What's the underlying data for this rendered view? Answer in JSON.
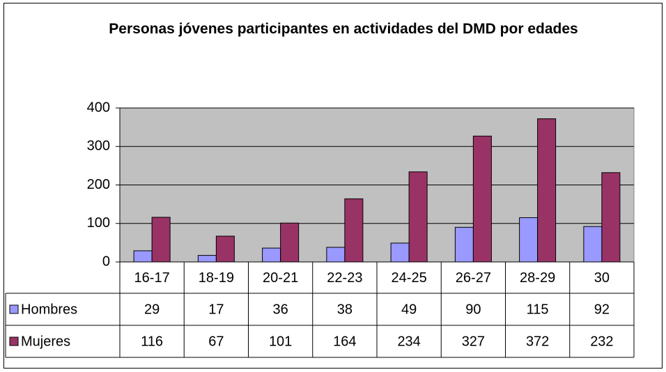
{
  "chart_data": {
    "type": "bar",
    "title": "Personas jóvenes participantes en actividades del DMD por edades",
    "categories": [
      "16-17",
      "18-19",
      "20-21",
      "22-23",
      "24-25",
      "26-27",
      "28-29",
      "30"
    ],
    "series": [
      {
        "name": "Hombres",
        "color": "#9999ff",
        "values": [
          29,
          17,
          36,
          38,
          49,
          90,
          115,
          92
        ]
      },
      {
        "name": "Mujeres",
        "color": "#993366",
        "values": [
          116,
          67,
          101,
          164,
          234,
          327,
          372,
          232
        ]
      }
    ],
    "ylim": [
      0,
      400
    ],
    "yticks": [
      0,
      100,
      200,
      300,
      400
    ],
    "grid": true
  }
}
